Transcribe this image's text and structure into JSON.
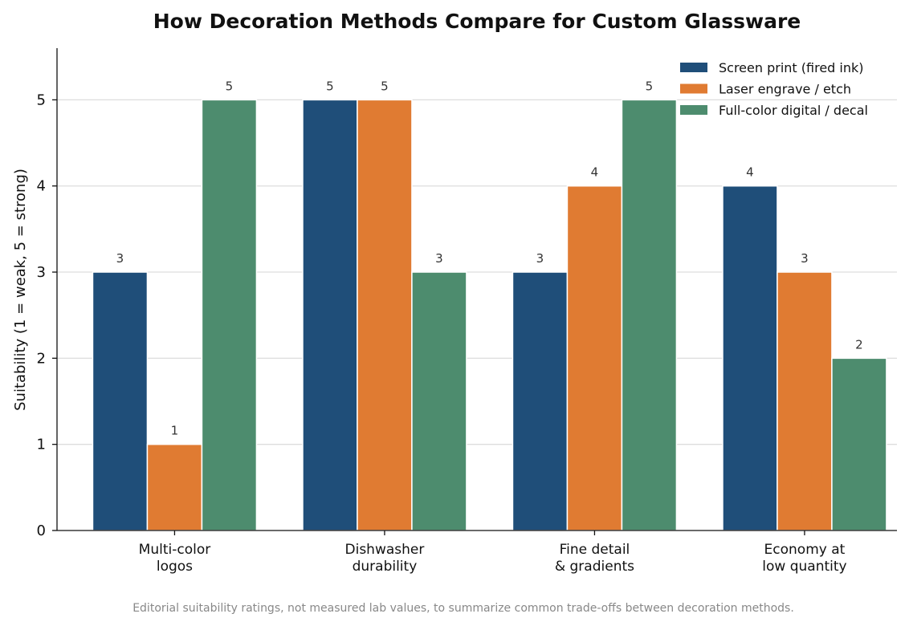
{
  "chart_data": {
    "type": "bar",
    "title": "How Decoration Methods Compare for Custom Glassware",
    "ylabel": "Suitability (1 = weak, 5 = strong)",
    "xlabel": "",
    "categories": [
      [
        "Multi-color",
        "logos"
      ],
      [
        "Dishwasher",
        "durability"
      ],
      [
        "Fine detail",
        "& gradients"
      ],
      [
        "Economy at",
        "low quantity"
      ]
    ],
    "series": [
      {
        "name": "Screen print (fired ink)",
        "color": "#1f4e79",
        "values": [
          3,
          5,
          3,
          4
        ]
      },
      {
        "name": "Laser engrave / etch",
        "color": "#e07b32",
        "values": [
          1,
          5,
          4,
          3
        ]
      },
      {
        "name": "Full-color digital / decal",
        "color": "#4d8c6e",
        "values": [
          5,
          3,
          5,
          2
        ]
      }
    ],
    "ylim": [
      0,
      5.6
    ],
    "yticks": [
      0,
      1,
      2,
      3,
      4,
      5
    ],
    "grid": "horizontal",
    "legend_position": "top-right",
    "footnote": "Editorial suitability ratings, not measured lab values, to summarize common trade-offs between decoration methods."
  }
}
